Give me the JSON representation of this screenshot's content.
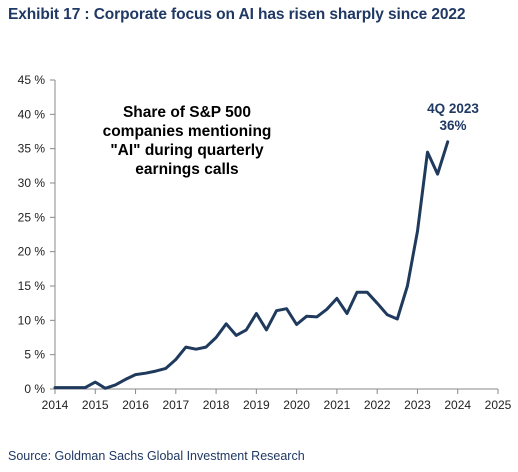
{
  "title": "Exhibit 17 : Corporate focus on AI has risen sharply since 2022",
  "source": "Source: Goldman Sachs Global Investment Research",
  "colors": {
    "line": "#1f3a5c",
    "title": "#1f3864",
    "axis": "#888888"
  },
  "chart_data": {
    "type": "line",
    "annotation_lines": [
      "Share of S&P 500",
      "companies mentioning",
      "\"AI\" during quarterly",
      "earnings calls"
    ],
    "callout_lines": [
      "4Q 2023",
      "36%"
    ],
    "xlim": [
      2014,
      2025
    ],
    "ylim": [
      0,
      45
    ],
    "x_ticks": [
      2014,
      2015,
      2016,
      2017,
      2018,
      2019,
      2020,
      2021,
      2022,
      2023,
      2024,
      2025
    ],
    "x_tick_labels": [
      "2014",
      "2015",
      "2016",
      "2017",
      "2018",
      "2019",
      "2020",
      "2021",
      "2022",
      "2023",
      "2024",
      "2025"
    ],
    "y_ticks": [
      0,
      5,
      10,
      15,
      20,
      25,
      30,
      35,
      40,
      45
    ],
    "y_tick_labels": [
      "0 %",
      "5 %",
      "10 %",
      "15 %",
      "20 %",
      "25 %",
      "30 %",
      "35 %",
      "40 %",
      "45 %"
    ],
    "grid": false,
    "series": [
      {
        "x": [
          2014.0,
          2014.25,
          2014.5,
          2014.75,
          2015.0,
          2015.25,
          2015.5,
          2015.75,
          2016.0,
          2016.25,
          2016.5,
          2016.75,
          2017.0,
          2017.25,
          2017.5,
          2017.75,
          2018.0,
          2018.25,
          2018.5,
          2018.75,
          2019.0,
          2019.25,
          2019.5,
          2019.75,
          2020.0,
          2020.25,
          2020.5,
          2020.75,
          2021.0,
          2021.25,
          2021.5,
          2021.75,
          2022.0,
          2022.25,
          2022.5,
          2022.75,
          2023.0,
          2023.25,
          2023.5,
          2023.75
        ],
        "y": [
          0.2,
          0.2,
          0.2,
          0.2,
          1.0,
          0.1,
          0.6,
          1.4,
          2.1,
          2.3,
          2.6,
          3.0,
          4.3,
          6.1,
          5.8,
          6.1,
          7.5,
          9.5,
          7.8,
          8.6,
          11.0,
          8.6,
          11.4,
          11.7,
          9.4,
          10.6,
          10.5,
          11.6,
          13.2,
          11.0,
          14.1,
          14.1,
          12.5,
          10.8,
          10.2,
          15.0,
          23.0,
          34.5,
          31.3,
          36.0
        ]
      }
    ]
  }
}
